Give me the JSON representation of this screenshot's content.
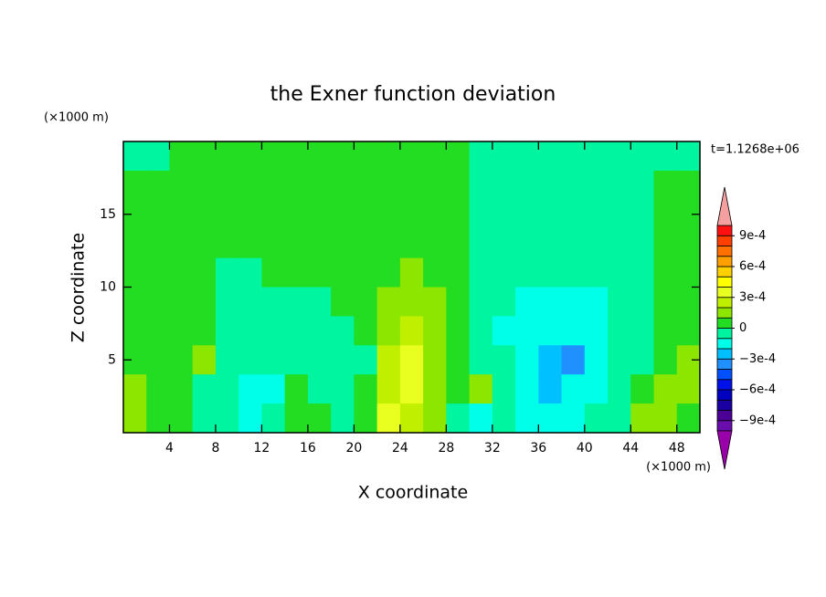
{
  "chart_data": {
    "type": "contour",
    "title": "the Exner function deviation",
    "xlabel": "X coordinate",
    "ylabel": "Z coordinate",
    "x_unit": "(×1000 m)",
    "y_unit": "(×1000 m)",
    "annotation": "t=1.1268e+06",
    "xlim": [
      0,
      50
    ],
    "ylim": [
      0,
      20
    ],
    "xticks": [
      4,
      8,
      12,
      16,
      20,
      24,
      28,
      32,
      36,
      40,
      44,
      48
    ],
    "yticks": [
      5,
      10,
      15
    ],
    "x": [
      1,
      3,
      5,
      7,
      9,
      11,
      13,
      15,
      17,
      19,
      21,
      23,
      25,
      27,
      29,
      31,
      33,
      35,
      37,
      39,
      41,
      43,
      45,
      47,
      49
    ],
    "y": [
      19,
      17,
      15,
      13,
      11,
      9,
      7,
      5,
      3,
      1
    ],
    "z": [
      [
        -5e-05,
        -5e-05,
        5e-05,
        5e-05,
        5e-05,
        5e-05,
        5e-05,
        5e-05,
        5e-05,
        5e-05,
        5e-05,
        5e-05,
        5e-05,
        5e-05,
        5e-05,
        -5e-05,
        -5e-05,
        -5e-05,
        -5e-05,
        -5e-05,
        -5e-05,
        -5e-05,
        -5e-05,
        -5e-05,
        -5e-05
      ],
      [
        5e-05,
        5e-05,
        5e-05,
        5e-05,
        5e-05,
        5e-05,
        5e-05,
        5e-05,
        5e-05,
        5e-05,
        5e-05,
        5e-05,
        5e-05,
        5e-05,
        5e-05,
        -5e-05,
        -5e-05,
        -5e-05,
        -5e-05,
        -5e-05,
        -5e-05,
        -5e-05,
        -5e-05,
        5e-05,
        5e-05
      ],
      [
        5e-05,
        5e-05,
        5e-05,
        5e-05,
        5e-05,
        5e-05,
        5e-05,
        5e-05,
        5e-05,
        5e-05,
        5e-05,
        5e-05,
        5e-05,
        5e-05,
        5e-05,
        -5e-05,
        -5e-05,
        -5e-05,
        -5e-05,
        -5e-05,
        -5e-05,
        -5e-05,
        -5e-05,
        5e-05,
        5e-05
      ],
      [
        5e-05,
        5e-05,
        5e-05,
        5e-05,
        5e-05,
        5e-05,
        5e-05,
        5e-05,
        5e-05,
        5e-05,
        5e-05,
        5e-05,
        5e-05,
        5e-05,
        5e-05,
        -5e-05,
        -5e-05,
        -5e-05,
        -5e-05,
        -5e-05,
        -5e-05,
        -5e-05,
        -5e-05,
        5e-05,
        5e-05
      ],
      [
        5e-05,
        5e-05,
        5e-05,
        5e-05,
        -5e-05,
        -5e-05,
        5e-05,
        5e-05,
        5e-05,
        5e-05,
        5e-05,
        5e-05,
        0.00015,
        5e-05,
        5e-05,
        -5e-05,
        -5e-05,
        -5e-05,
        -5e-05,
        -5e-05,
        -5e-05,
        -5e-05,
        -5e-05,
        5e-05,
        5e-05
      ],
      [
        5e-05,
        5e-05,
        5e-05,
        5e-05,
        -5e-05,
        -5e-05,
        -5e-05,
        -5e-05,
        -5e-05,
        5e-05,
        5e-05,
        0.00015,
        0.00015,
        0.00015,
        5e-05,
        -5e-05,
        -5e-05,
        -0.00015,
        -0.00015,
        -0.00015,
        -0.00015,
        -5e-05,
        -5e-05,
        5e-05,
        5e-05
      ],
      [
        5e-05,
        5e-05,
        5e-05,
        5e-05,
        -5e-05,
        -5e-05,
        -5e-05,
        -5e-05,
        -5e-05,
        -5e-05,
        5e-05,
        0.00015,
        0.00025,
        0.00015,
        5e-05,
        -5e-05,
        -0.00015,
        -0.00015,
        -0.00015,
        -0.00015,
        -0.00015,
        -5e-05,
        -5e-05,
        5e-05,
        5e-05
      ],
      [
        5e-05,
        5e-05,
        5e-05,
        0.00015,
        -5e-05,
        -5e-05,
        -5e-05,
        -5e-05,
        -5e-05,
        -5e-05,
        -5e-05,
        0.00025,
        0.00035,
        0.00015,
        5e-05,
        -5e-05,
        -5e-05,
        -0.00015,
        -0.00025,
        -0.00035,
        -0.00015,
        -5e-05,
        -5e-05,
        5e-05,
        0.00015
      ],
      [
        0.00015,
        5e-05,
        5e-05,
        -5e-05,
        -5e-05,
        -0.00015,
        -0.00015,
        5e-05,
        -5e-05,
        -5e-05,
        5e-05,
        0.00025,
        0.00035,
        0.00015,
        5e-05,
        0.00015,
        -5e-05,
        -0.00015,
        -0.00025,
        -0.00015,
        -0.00015,
        -5e-05,
        5e-05,
        0.00015,
        0.00015
      ],
      [
        0.00015,
        5e-05,
        5e-05,
        -5e-05,
        -5e-05,
        -0.00015,
        -5e-05,
        5e-05,
        5e-05,
        -5e-05,
        5e-05,
        0.00035,
        0.00025,
        0.00015,
        -5e-05,
        -0.00015,
        -5e-05,
        -0.00015,
        -0.00015,
        -0.00015,
        -5e-05,
        -5e-05,
        0.00015,
        0.00015,
        5e-05
      ]
    ],
    "levels": [
      -0.001,
      -0.0009,
      -0.0008,
      -0.0007,
      -0.0006,
      -0.0005,
      -0.0004,
      -0.0003,
      -0.0002,
      -0.0001,
      0,
      0.0001,
      0.0002,
      0.0003,
      0.0004,
      0.0005,
      0.0006,
      0.0007,
      0.0008,
      0.0009,
      0.001
    ],
    "colors": [
      "#6a0dad",
      "#4b0096",
      "#1a00a0",
      "#0000c0",
      "#0010e8",
      "#0050ff",
      "#2090ff",
      "#00c0ff",
      "#00ffe8",
      "#00f5a0",
      "#22dd22",
      "#8ce600",
      "#c0f000",
      "#e8ff20",
      "#ffff00",
      "#ffd000",
      "#ffa000",
      "#ff7000",
      "#ff4000",
      "#ff1010"
    ],
    "extend_colors": [
      "#9900aa",
      "#f4a0a0"
    ],
    "colorbar_ticks": [
      {
        "value": -0.0009,
        "label": "−9e-4"
      },
      {
        "value": -0.0006,
        "label": "−6e-4"
      },
      {
        "value": -0.0003,
        "label": "−3e-4"
      },
      0,
      {
        "value": 0.0003,
        "label": "3e-4"
      },
      {
        "value": 0.0006,
        "label": "6e-4"
      },
      {
        "value": 0.0009,
        "label": "9e-4"
      }
    ]
  }
}
